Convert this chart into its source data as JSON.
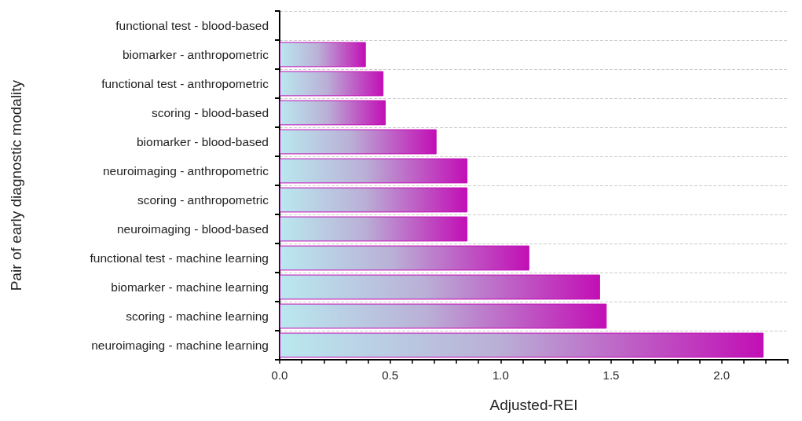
{
  "chart_data": {
    "type": "bar",
    "orientation": "horizontal",
    "xlabel": "Adjusted-REI",
    "ylabel": "Pair of early diagnostic modality",
    "categories": [
      "functional test - blood-based",
      "biomarker - anthropometric",
      "functional test - anthropometric",
      "scoring - blood-based",
      "biomarker - blood-based",
      "neuroimaging - anthropometric",
      "scoring - anthropometric",
      "neuroimaging - blood-based",
      "functional test - machine learning",
      "biomarker - machine learning",
      "scoring - machine learning",
      "neuroimaging - machine learning"
    ],
    "series": [
      {
        "color": "#c20fb5",
        "values": [
          null,
          0.39,
          0.47,
          0.48,
          0.71,
          0.85,
          0.85,
          0.85,
          1.13,
          1.45,
          1.48,
          2.19
        ]
      }
    ],
    "xlim": [
      0,
      2.3
    ],
    "xticks": [
      {
        "value": 0,
        "label": "0.0"
      },
      {
        "value": 0.1,
        "label": null
      },
      {
        "value": 0.2,
        "label": null
      },
      {
        "value": 0.3,
        "label": null
      },
      {
        "value": 0.4,
        "label": null
      },
      {
        "value": 0.5,
        "label": "0.5"
      },
      {
        "value": 0.6,
        "label": null
      },
      {
        "value": 0.7,
        "label": null
      },
      {
        "value": 0.8,
        "label": null
      },
      {
        "value": 0.9,
        "label": null
      },
      {
        "value": 1,
        "label": "1.0"
      },
      {
        "value": 1.1,
        "label": null
      },
      {
        "value": 1.2,
        "label": null
      },
      {
        "value": 1.3,
        "label": null
      },
      {
        "value": 1.4,
        "label": null
      },
      {
        "value": 1.5,
        "label": "1.5"
      },
      {
        "value": 1.6,
        "label": null
      },
      {
        "value": 1.7,
        "label": null
      },
      {
        "value": 1.8,
        "label": null
      },
      {
        "value": 1.9,
        "label": null
      },
      {
        "value": 2,
        "label": "2.0"
      },
      {
        "value": 2.1,
        "label": null
      },
      {
        "value": 2.2,
        "label": null
      },
      {
        "value": 2.3,
        "label": null
      }
    ],
    "grid": "y"
  }
}
